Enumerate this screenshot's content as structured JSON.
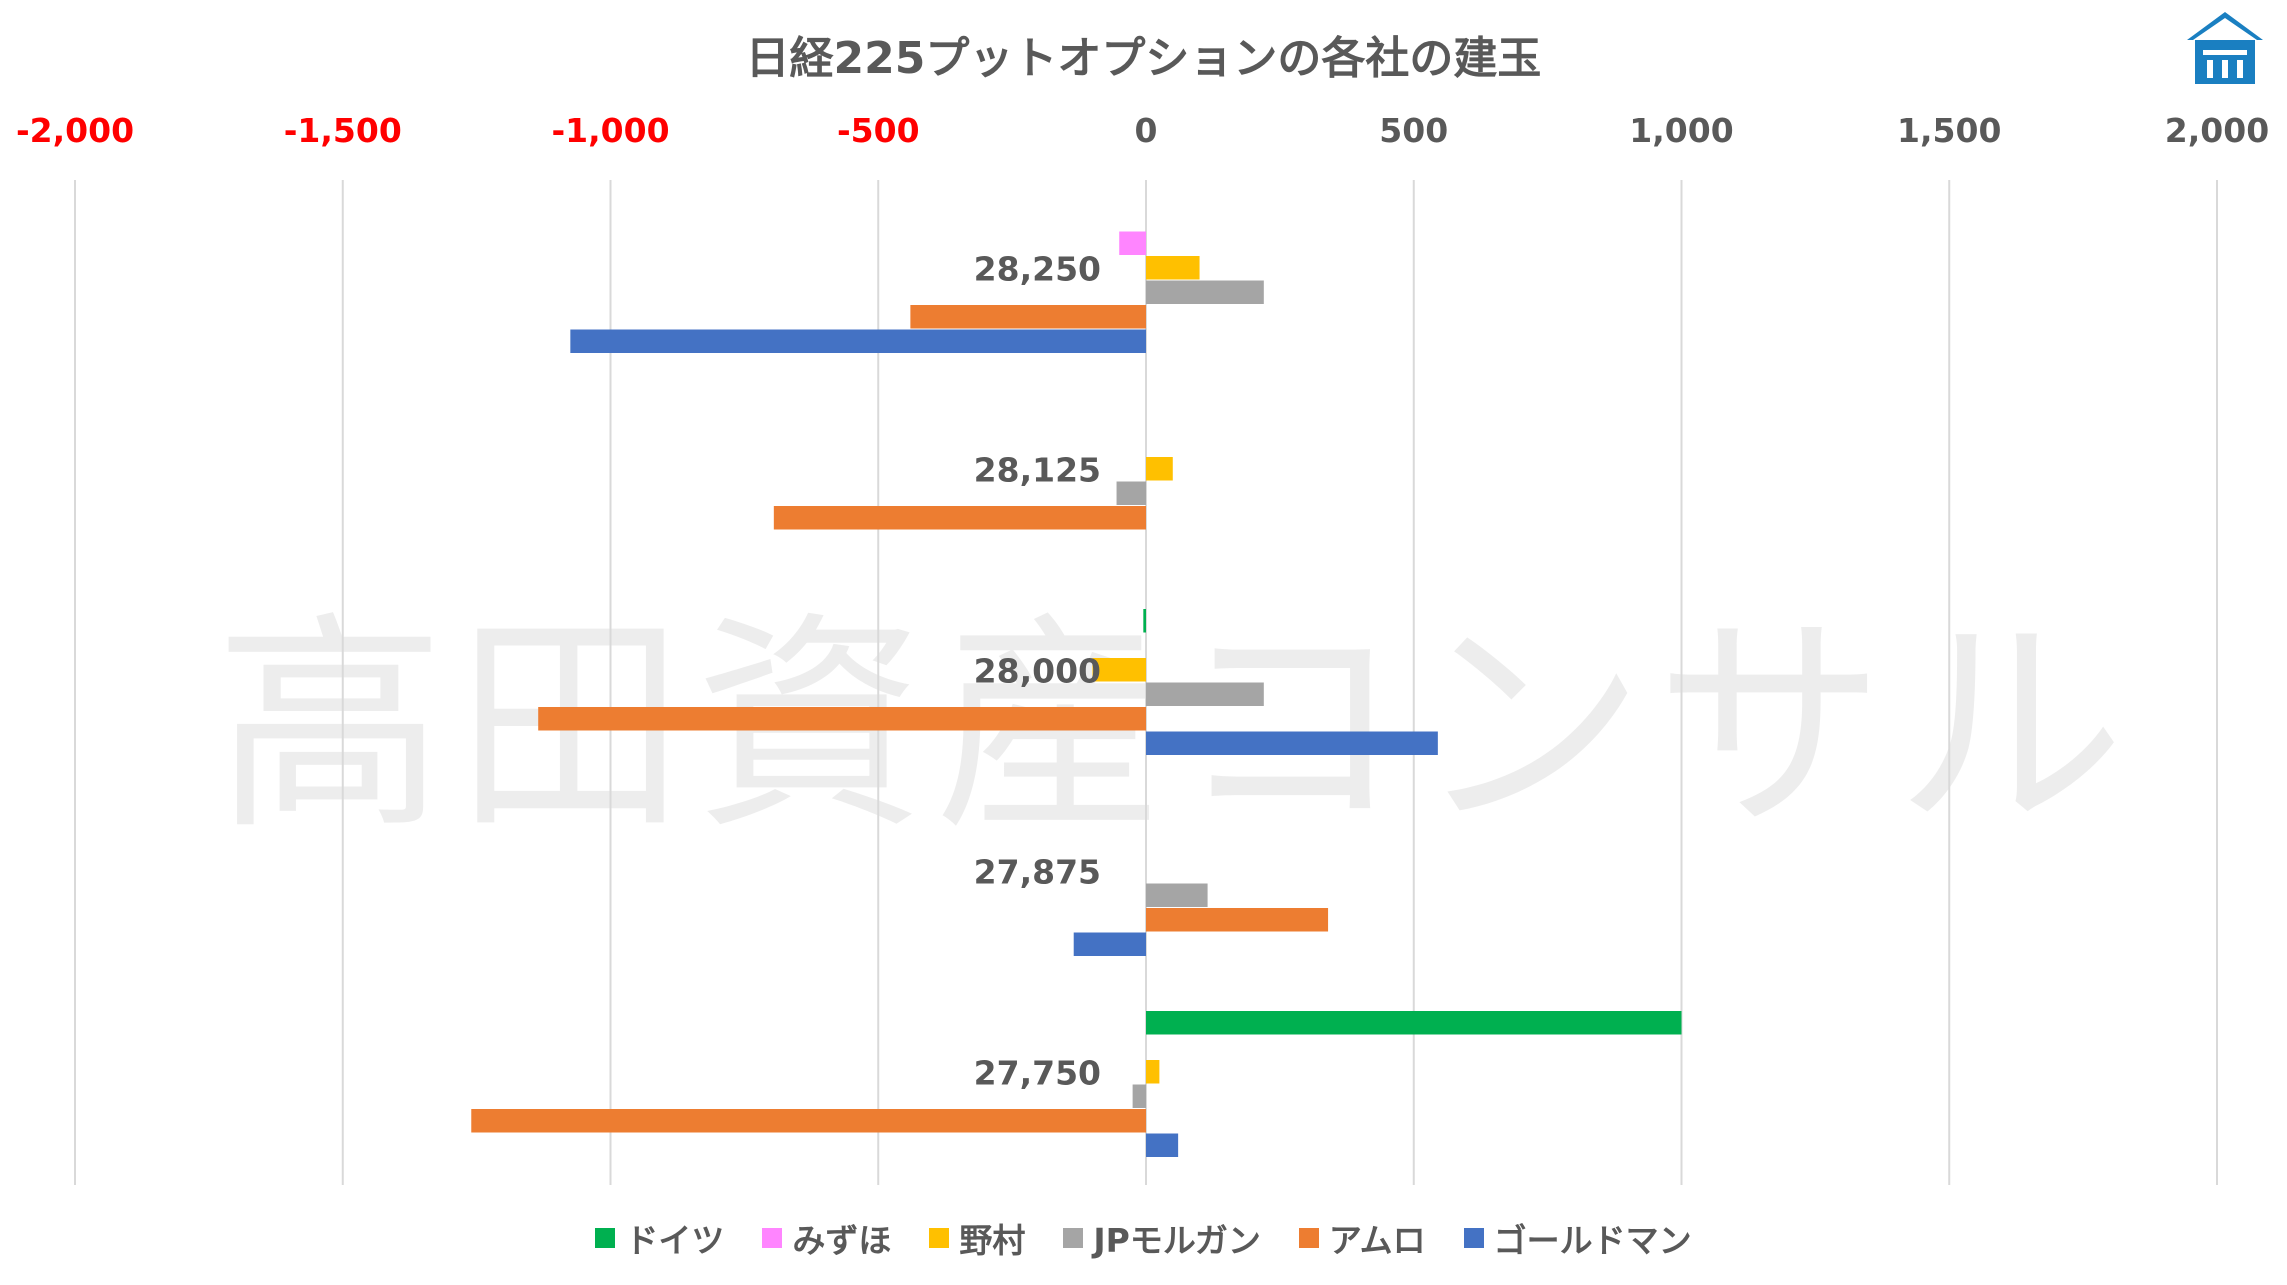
{
  "chart_data": {
    "type": "bar",
    "orientation": "horizontal",
    "title": "日経225プットオプションの各社の建玉",
    "watermark": "高田資産コンサル",
    "xlim": [
      -2000,
      2000
    ],
    "x_ticks": [
      -2000,
      -1500,
      -1000,
      -500,
      0,
      500,
      1000,
      1500,
      2000
    ],
    "x_tick_labels": [
      "-2,000",
      "-1,500",
      "-1,000",
      "-500",
      "0",
      "500",
      "1,000",
      "1,500",
      "2,000"
    ],
    "negative_tick_color": "#ff0000",
    "positive_tick_color": "#595959",
    "grid": true,
    "axis_position": "top",
    "legend_position": "bottom",
    "categories": [
      "28,250",
      "28,125",
      "28,000",
      "27,875",
      "27,750"
    ],
    "series": [
      {
        "name": "ドイツ",
        "color": "#00b050",
        "values": [
          0,
          0,
          -5,
          0,
          1000
        ]
      },
      {
        "name": "みずほ",
        "color": "#ff85ff",
        "values": [
          -50,
          0,
          0,
          0,
          0
        ]
      },
      {
        "name": "野村",
        "color": "#ffc000",
        "values": [
          100,
          50,
          -100,
          0,
          25
        ]
      },
      {
        "name": "JPモルガン",
        "color": "#a5a5a5",
        "values": [
          220,
          -55,
          220,
          115,
          -25
        ]
      },
      {
        "name": "アムロ",
        "color": "#ed7d31",
        "values": [
          -440,
          -695,
          -1135,
          340,
          -1260
        ]
      },
      {
        "name": "ゴールドマン",
        "color": "#4472c4",
        "values": [
          -1075,
          0,
          545,
          -135,
          60
        ]
      }
    ]
  }
}
